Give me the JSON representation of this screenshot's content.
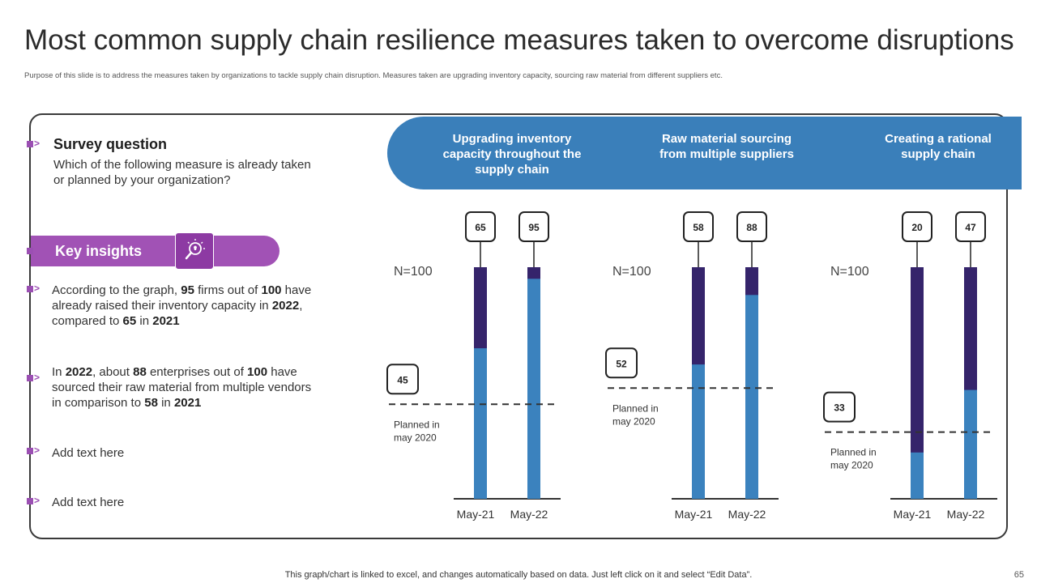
{
  "title": "Most common supply chain resilience measures taken to overcome disruptions",
  "subtitle": "Purpose of this slide is to address the measures taken  by organizations to tackle supply chain disruption. Measures taken are upgrading inventory capacity, sourcing raw material from different suppliers etc.",
  "survey": {
    "heading": "Survey question",
    "text": "Which of the following measure is already taken or planned by your organization?"
  },
  "insights": {
    "heading": "Key insights",
    "icon": "lightbulb-magnifier-icon",
    "items": [
      {
        "parts": [
          [
            "According to the graph, ",
            false
          ],
          [
            "95",
            true
          ],
          [
            " firms out of ",
            false
          ],
          [
            "100",
            true
          ],
          [
            " have already raised their inventory capacity in ",
            false
          ],
          [
            "2022",
            true
          ],
          [
            ", compared to ",
            false
          ],
          [
            "65",
            true
          ],
          [
            " in ",
            false
          ],
          [
            "2021",
            true
          ]
        ]
      },
      {
        "parts": [
          [
            "In ",
            false
          ],
          [
            "2022",
            true
          ],
          [
            ", about ",
            false
          ],
          [
            "88",
            true
          ],
          [
            " enterprises out of ",
            false
          ],
          [
            "100",
            true
          ],
          [
            " have sourced their raw material from multiple vendors in comparison to ",
            false
          ],
          [
            "58",
            true
          ],
          [
            " in ",
            false
          ],
          [
            "2021",
            true
          ]
        ]
      },
      {
        "parts": [
          [
            "Add text here",
            false
          ]
        ]
      },
      {
        "parts": [
          [
            "Add text here",
            false
          ]
        ]
      }
    ]
  },
  "colors": {
    "accent_purple": "#a152b5",
    "band_blue": "#3a7fba",
    "bar_blue": "#3b82be",
    "bar_dark": "#35246b"
  },
  "chart_data": [
    {
      "type": "bar",
      "title": "Upgrading inventory capacity throughout the supply chain",
      "n_label": "N=100",
      "categories": [
        "May-21",
        "May-22"
      ],
      "values": [
        65,
        95
      ],
      "total": 100,
      "ylim": [
        0,
        100
      ],
      "planned": {
        "value": 45,
        "label": "Planned in may 2020"
      }
    },
    {
      "type": "bar",
      "title": "Raw material sourcing from multiple suppliers",
      "n_label": "N=100",
      "categories": [
        "May-21",
        "May-22"
      ],
      "values": [
        58,
        88
      ],
      "total": 100,
      "ylim": [
        0,
        100
      ],
      "planned": {
        "value": 52,
        "label": "Planned in may 2020"
      }
    },
    {
      "type": "bar",
      "title": "Creating a rational supply chain",
      "n_label": "N=100",
      "categories": [
        "May-21",
        "May-22"
      ],
      "values": [
        20,
        47
      ],
      "total": 100,
      "ylim": [
        0,
        100
      ],
      "planned": {
        "value": 33,
        "label": "Planned in may 2020"
      }
    }
  ],
  "footer": "This graph/chart is linked to excel,  and changes automatically based on data. Just left click on it and select “Edit Data”.",
  "page_number": "65"
}
